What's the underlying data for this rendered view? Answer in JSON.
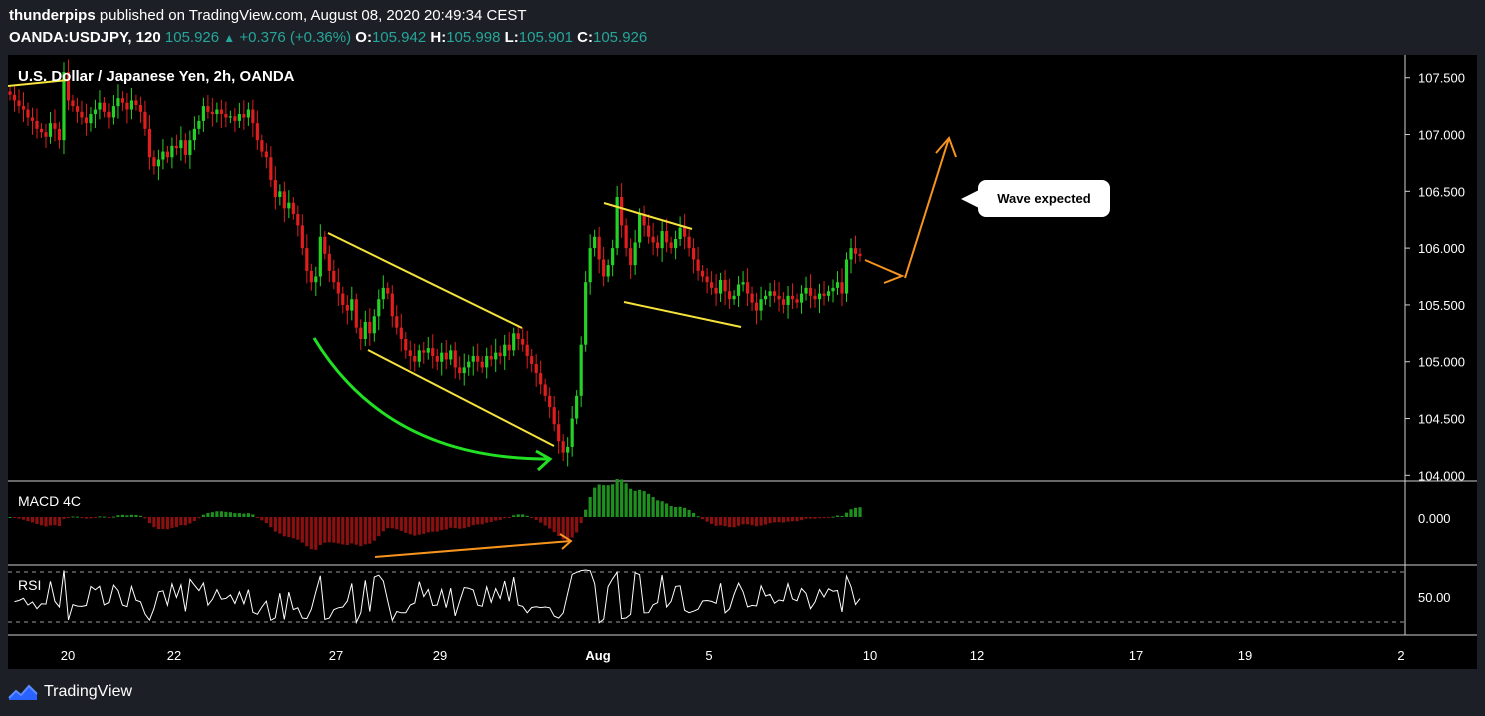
{
  "header": {
    "author": "thunderpips",
    "published": " published on TradingView.com, August 08, 2020 20:49:34 CEST",
    "symbol": "OANDA:USDJPY, 120",
    "last": "105.926",
    "change": "+0.376 (+0.36%)",
    "o_label": "O:",
    "o": "105.942",
    "h_label": "H:",
    "h": "105.998",
    "l_label": "L:",
    "l": "105.901",
    "c_label": "C:",
    "c": "105.926"
  },
  "chart_title": "U.S. Dollar / Japanese Yen, 2h, OANDA",
  "macd_label": "MACD 4C",
  "rsi_label": "RSI",
  "callout_text": "Wave expected",
  "footer_brand": "TradingView",
  "colors": {
    "up": "#26d126",
    "down": "#e01e1e",
    "macd_up": "#1f8f1f",
    "macd_down": "#8b1010",
    "trend": "#f5e23a",
    "curve": "#22e022",
    "arrow": "#f7941d",
    "rsi": "#ffffff"
  },
  "chart_data": [
    {
      "type": "candlestick",
      "title": "U.S. Dollar / Japanese Yen, 2h, OANDA",
      "ylim": [
        103.95,
        107.7
      ],
      "y_ticks": [
        "107.500",
        "107.000",
        "106.500",
        "106.000",
        "105.500",
        "105.000",
        "104.500",
        "104.000"
      ],
      "x_ticks": [
        "20",
        "22",
        "27",
        "29",
        "Aug",
        "5",
        "10",
        "12",
        "17",
        "19",
        "2"
      ],
      "closes": [
        107.35,
        107.3,
        107.25,
        107.22,
        107.15,
        107.12,
        107.05,
        107.02,
        106.98,
        107.1,
        107.05,
        106.95,
        107.55,
        107.3,
        107.25,
        107.2,
        107.15,
        107.1,
        107.18,
        107.22,
        107.28,
        107.2,
        107.15,
        107.25,
        107.32,
        107.28,
        107.22,
        107.3,
        107.26,
        107.2,
        107.05,
        106.8,
        106.72,
        106.78,
        106.85,
        106.8,
        106.9,
        106.88,
        106.95,
        106.82,
        106.95,
        107.05,
        107.12,
        107.25,
        107.2,
        107.18,
        107.22,
        107.18,
        107.15,
        107.16,
        107.12,
        107.18,
        107.15,
        107.22,
        107.1,
        106.95,
        106.85,
        106.8,
        106.6,
        106.45,
        106.5,
        106.35,
        106.4,
        106.3,
        106.2,
        106.0,
        105.8,
        105.7,
        105.75,
        106.1,
        105.95,
        105.8,
        105.7,
        105.6,
        105.5,
        105.45,
        105.55,
        105.3,
        105.2,
        105.35,
        105.25,
        105.4,
        105.55,
        105.65,
        105.6,
        105.4,
        105.3,
        105.2,
        105.1,
        105.05,
        105.0,
        105.1,
        105.08,
        105.12,
        105.05,
        105.0,
        105.08,
        105.02,
        105.1,
        104.95,
        104.9,
        104.95,
        105.0,
        105.05,
        105.0,
        104.95,
        105.05,
        105.02,
        105.08,
        105.05,
        105.15,
        105.1,
        105.25,
        105.2,
        105.15,
        105.05,
        104.98,
        104.9,
        104.8,
        104.7,
        104.6,
        104.45,
        104.3,
        104.2,
        104.25,
        104.5,
        104.7,
        105.15,
        105.7,
        106.0,
        106.1,
        105.9,
        105.75,
        105.85,
        106.0,
        106.45,
        106.2,
        106.0,
        105.85,
        106.05,
        106.3,
        106.2,
        106.1,
        106.05,
        106.0,
        106.15,
        106.05,
        106.0,
        106.08,
        106.18,
        106.1,
        106.0,
        105.9,
        105.8,
        105.75,
        105.7,
        105.65,
        105.6,
        105.72,
        105.62,
        105.55,
        105.58,
        105.68,
        105.7,
        105.6,
        105.52,
        105.45,
        105.55,
        105.58,
        105.62,
        105.58,
        105.55,
        105.5,
        105.58,
        105.55,
        105.52,
        105.6,
        105.65,
        105.58,
        105.55,
        105.6,
        105.58,
        105.62,
        105.65,
        105.7,
        105.6,
        105.9,
        106.0,
        105.95,
        105.93
      ]
    },
    {
      "type": "bar",
      "title": "MACD 4C",
      "y_ticks": [
        "0.000"
      ]
    },
    {
      "type": "line",
      "title": "RSI",
      "y_ticks": [
        "50.00"
      ]
    }
  ]
}
